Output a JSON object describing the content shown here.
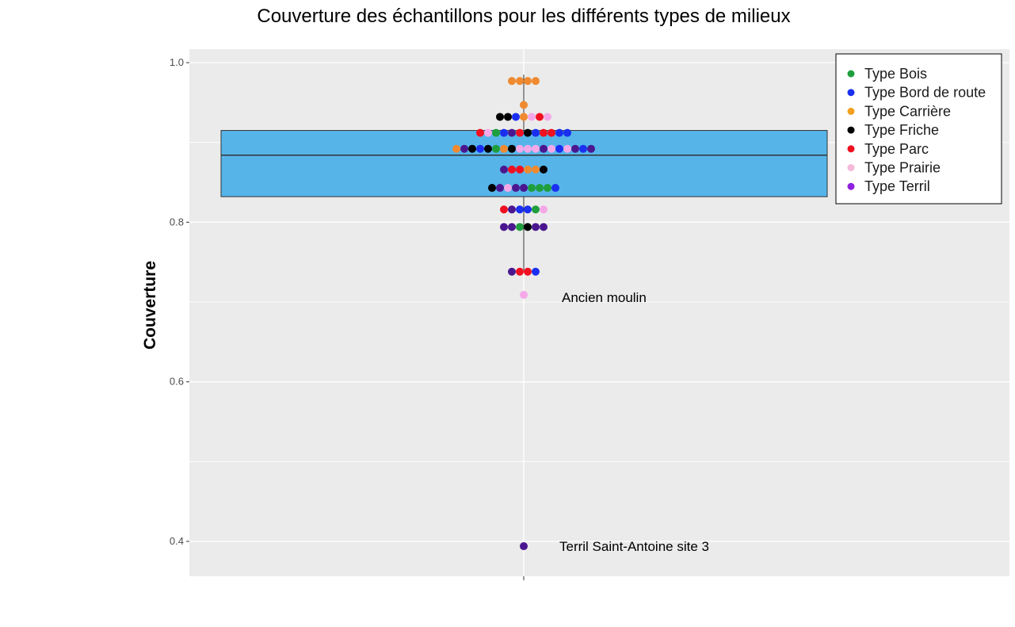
{
  "chart_data": {
    "type": "boxplot-dotplot",
    "title": "Couverture des échantillons pour les différents types de milieux",
    "xlabel": "",
    "ylabel": "Couverture",
    "ylim": [
      0.36,
      1.02
    ],
    "yticks": [
      0.4,
      0.6,
      0.8,
      1.0
    ],
    "ytick_labels": [
      "0.4",
      "0.6",
      "0.8",
      "1.0"
    ],
    "grid": true,
    "legend_position": "top-right",
    "box": {
      "q1": 0.832,
      "median": 0.884,
      "q3": 0.915,
      "whisker_low": 0.74,
      "whisker_high": 0.985
    },
    "colors": {
      "Bois": "#1f9e3e",
      "Bord de route": "#1a2ff0",
      "Carrière": "#f08a30",
      "Friche": "#000000",
      "Parc": "#f01020",
      "Prairie": "#f5a8e8",
      "Terril": "#4b1790",
      "box_fill": "#56b4e9"
    },
    "legend": [
      {
        "label": "Type Bois",
        "color": "#1f9e3e"
      },
      {
        "label": "Type Bord de route",
        "color": "#1a2ff0"
      },
      {
        "label": "Type Carrière",
        "color": "#f5a020"
      },
      {
        "label": "Type Friche",
        "color": "#000000"
      },
      {
        "label": "Type Parc",
        "color": "#f01020"
      },
      {
        "label": "Type Prairie",
        "color": "#f5b8d8"
      },
      {
        "label": "Type Terril",
        "color": "#9020e0"
      }
    ],
    "dot_rows": [
      {
        "y": 0.977,
        "types": [
          "Carrière",
          "Carrière",
          "Carrière",
          "Carrière"
        ]
      },
      {
        "y": 0.947,
        "types": [
          "Carrière"
        ]
      },
      {
        "y": 0.932,
        "types": [
          "Friche",
          "Friche",
          "Bord de route",
          "Carrière",
          "Prairie",
          "Parc",
          "Prairie"
        ]
      },
      {
        "y": 0.912,
        "types": [
          "Parc",
          "Prairie",
          "Bois",
          "Bord de route",
          "Terril",
          "Parc",
          "Friche",
          "Bord de route",
          "Parc",
          "Parc",
          "Bord de route",
          "Bord de route"
        ]
      },
      {
        "y": 0.892,
        "types": [
          "Carrière",
          "Terril",
          "Friche",
          "Bord de route",
          "Friche",
          "Bois",
          "Carrière",
          "Friche",
          "Prairie",
          "Prairie",
          "Prairie",
          "Terril",
          "Prairie",
          "Bord de route",
          "Prairie",
          "Terril",
          "Bord de route",
          "Terril"
        ]
      },
      {
        "y": 0.866,
        "types": [
          "Terril",
          "Parc",
          "Parc",
          "Carrière",
          "Carrière",
          "Friche"
        ]
      },
      {
        "y": 0.843,
        "types": [
          "Friche",
          "Terril",
          "Prairie",
          "Terril",
          "Terril",
          "Bois",
          "Bois",
          "Bois",
          "Bord de route"
        ]
      },
      {
        "y": 0.816,
        "types": [
          "Parc",
          "Terril",
          "Bord de route",
          "Bord de route",
          "Bois",
          "Prairie"
        ]
      },
      {
        "y": 0.794,
        "types": [
          "Terril",
          "Terril",
          "Bois",
          "Friche",
          "Terril",
          "Terril"
        ]
      },
      {
        "y": 0.738,
        "types": [
          "Terril",
          "Parc",
          "Parc",
          "Bord de route"
        ]
      },
      {
        "y": 0.709,
        "types": [
          "Prairie"
        ]
      },
      {
        "y": 0.394,
        "types": [
          "Terril"
        ]
      }
    ],
    "annotations": [
      {
        "text": "Ancien moulin",
        "y": 0.709
      },
      {
        "text": "Terril Saint-Antoine site 3",
        "y": 0.394
      }
    ]
  }
}
